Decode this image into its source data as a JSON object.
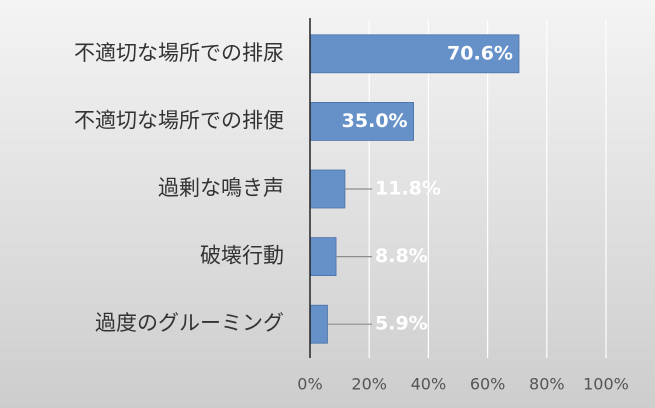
{
  "chart_data": {
    "type": "bar",
    "orientation": "horizontal",
    "categories": [
      "不適切な場所での排尿",
      "不適切な場所での排便",
      "過剰な鳴き声",
      "破壊行動",
      "過度のグルーミング"
    ],
    "values": [
      70.6,
      35.0,
      11.8,
      8.8,
      5.9
    ],
    "value_labels": [
      "70.6%",
      "35.0%",
      "11.8%",
      "8.8%",
      "5.9%"
    ],
    "color": "#6590c8",
    "xlim": [
      0,
      100
    ],
    "xticks": [
      {
        "value": 0,
        "label": "0%"
      },
      {
        "value": 20,
        "label": "20%"
      },
      {
        "value": 40,
        "label": "40%"
      },
      {
        "value": 60,
        "label": "60%"
      },
      {
        "value": 80,
        "label": "80%"
      },
      {
        "value": 100,
        "label": "100%"
      }
    ],
    "grid": true
  }
}
